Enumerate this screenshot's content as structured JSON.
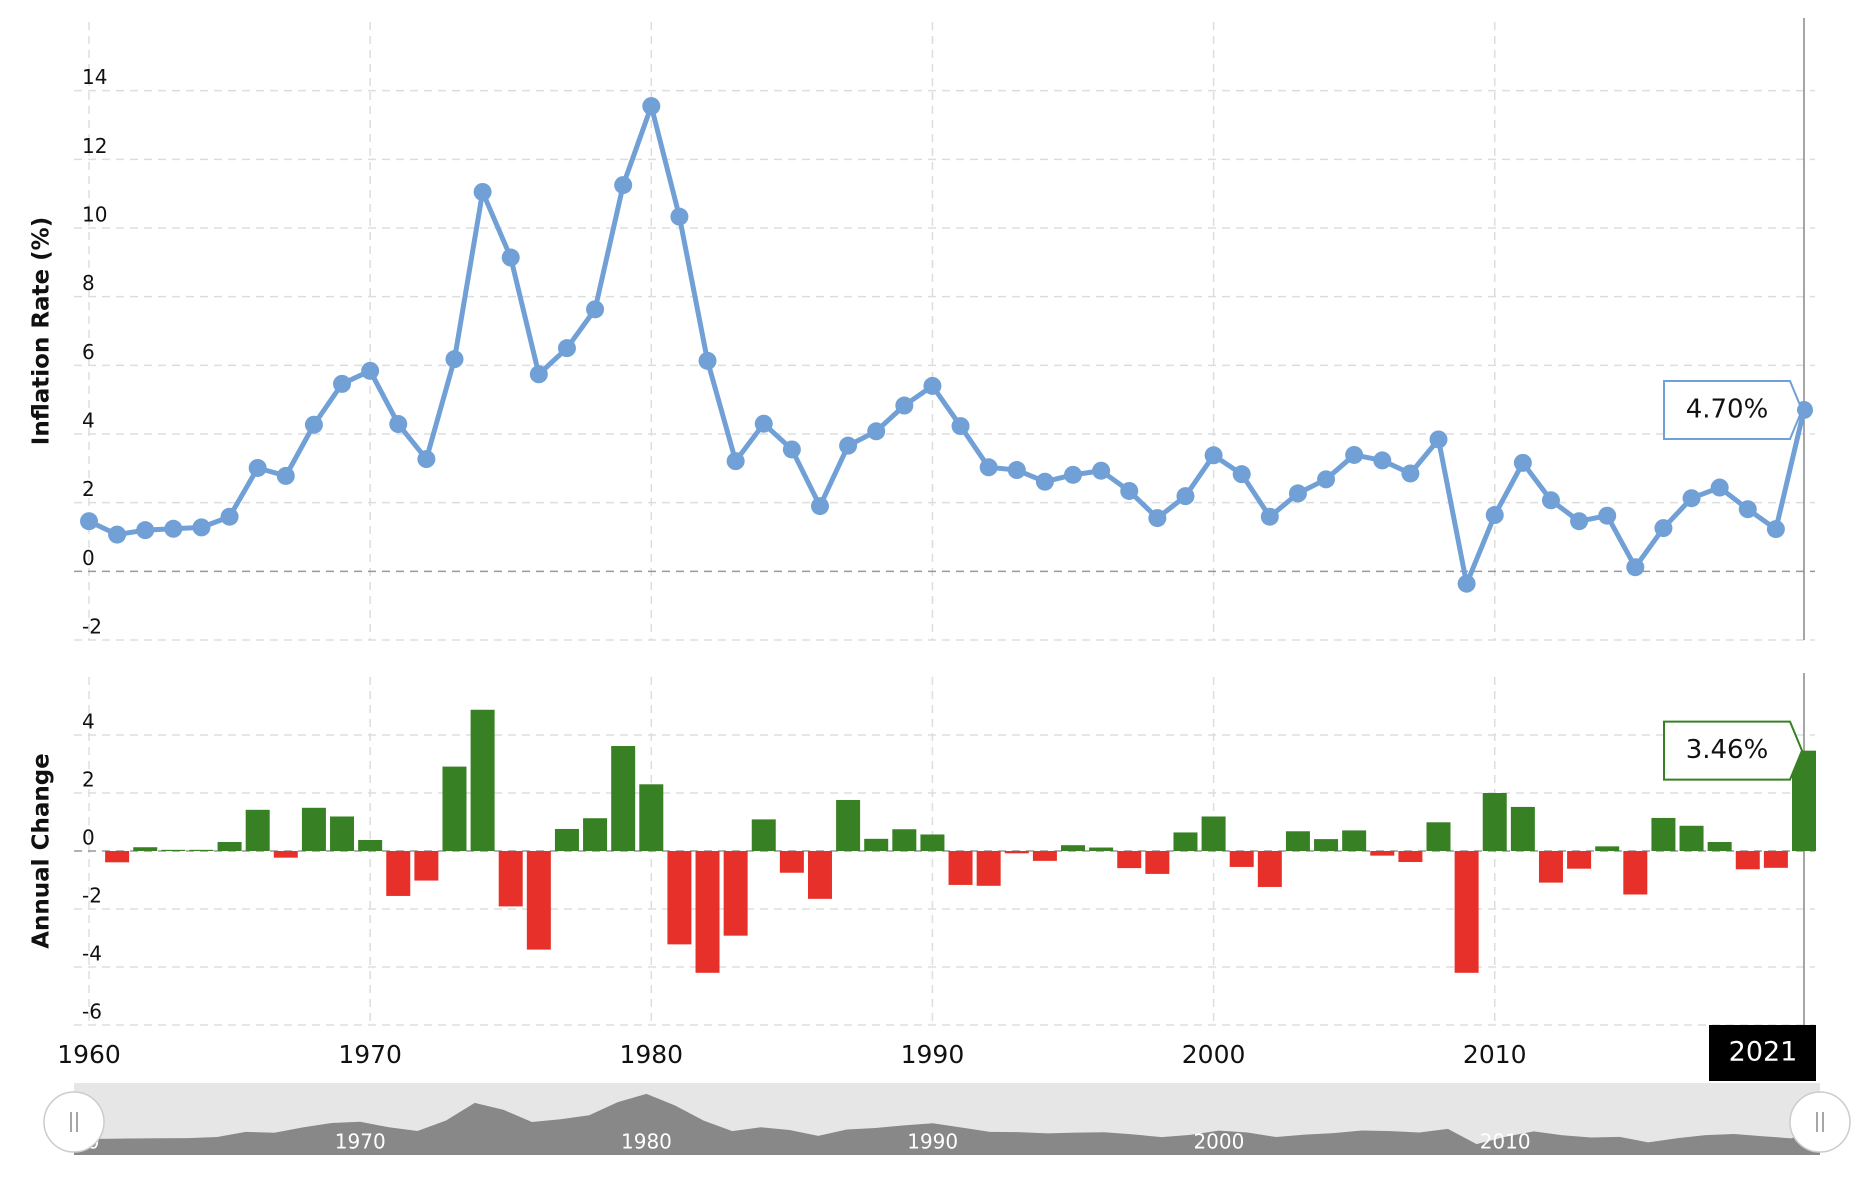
{
  "chart_data": [
    {
      "type": "line",
      "ylabel": "Inflation Rate (%)",
      "x": [
        1960,
        1961,
        1962,
        1963,
        1964,
        1965,
        1966,
        1967,
        1968,
        1969,
        1970,
        1971,
        1972,
        1973,
        1974,
        1975,
        1976,
        1977,
        1978,
        1979,
        1980,
        1981,
        1982,
        1983,
        1984,
        1985,
        1986,
        1987,
        1988,
        1989,
        1990,
        1991,
        1992,
        1993,
        1994,
        1995,
        1996,
        1997,
        1998,
        1999,
        2000,
        2001,
        2002,
        2003,
        2004,
        2005,
        2006,
        2007,
        2008,
        2009,
        2010,
        2011,
        2012,
        2013,
        2014,
        2015,
        2016,
        2017,
        2018,
        2019,
        2020,
        2021
      ],
      "values": [
        1.46,
        1.07,
        1.2,
        1.24,
        1.28,
        1.59,
        3.01,
        2.78,
        4.27,
        5.46,
        5.84,
        4.29,
        3.27,
        6.18,
        11.05,
        9.14,
        5.74,
        6.5,
        7.63,
        11.25,
        13.55,
        10.33,
        6.13,
        3.21,
        4.3,
        3.55,
        1.9,
        3.66,
        4.08,
        4.83,
        5.4,
        4.23,
        3.03,
        2.95,
        2.61,
        2.81,
        2.93,
        2.34,
        1.55,
        2.19,
        3.38,
        2.83,
        1.59,
        2.27,
        2.68,
        3.39,
        3.23,
        2.85,
        3.84,
        -0.36,
        1.64,
        3.16,
        2.07,
        1.46,
        1.62,
        0.12,
        1.26,
        2.13,
        2.44,
        1.81,
        1.23,
        4.7
      ],
      "value_labels": [
        null,
        null,
        null,
        null,
        null,
        null,
        null,
        null,
        null,
        null,
        null,
        null,
        null,
        null,
        null,
        null,
        null,
        null,
        null,
        null,
        null,
        null,
        null,
        null,
        null,
        null,
        null,
        null,
        null,
        null,
        null,
        null,
        null,
        null,
        null,
        null,
        null,
        null,
        null,
        null,
        null,
        null,
        null,
        null,
        null,
        null,
        null,
        null,
        null,
        null,
        null,
        null,
        null,
        null,
        null,
        null,
        null,
        null,
        null,
        null,
        null,
        "4.70%"
      ],
      "color": "#70a0d6",
      "xlim": [
        1960,
        2021
      ],
      "xticks": [
        1960,
        1970,
        1980,
        1990,
        2000,
        2010
      ],
      "ylim": [
        -2,
        16
      ],
      "yticks": [
        -2,
        0,
        2,
        4,
        6,
        8,
        10,
        12,
        14
      ],
      "grid": true,
      "crosshair_x": 2021
    },
    {
      "type": "bar",
      "ylabel": "Annual Change",
      "x": [
        1960,
        1961,
        1962,
        1963,
        1964,
        1965,
        1966,
        1967,
        1968,
        1969,
        1970,
        1971,
        1972,
        1973,
        1974,
        1975,
        1976,
        1977,
        1978,
        1979,
        1980,
        1981,
        1982,
        1983,
        1984,
        1985,
        1986,
        1987,
        1988,
        1989,
        1990,
        1991,
        1992,
        1993,
        1994,
        1995,
        1996,
        1997,
        1998,
        1999,
        2000,
        2001,
        2002,
        2003,
        2004,
        2005,
        2006,
        2007,
        2008,
        2009,
        2010,
        2011,
        2012,
        2013,
        2014,
        2015,
        2016,
        2017,
        2018,
        2019,
        2020,
        2021
      ],
      "values": [
        null,
        -0.39,
        0.13,
        0.04,
        0.04,
        0.31,
        1.42,
        -0.23,
        1.49,
        1.19,
        0.38,
        -1.55,
        -1.02,
        2.91,
        4.87,
        -1.91,
        -3.4,
        0.76,
        1.13,
        3.62,
        2.3,
        -3.22,
        -4.2,
        -2.92,
        1.09,
        -0.75,
        -1.65,
        1.76,
        0.42,
        0.75,
        0.57,
        -1.17,
        -1.2,
        -0.08,
        -0.34,
        0.2,
        0.12,
        -0.59,
        -0.79,
        0.64,
        1.19,
        -0.55,
        -1.24,
        0.68,
        0.41,
        0.71,
        -0.16,
        -0.38,
        0.99,
        -4.2,
        2.0,
        1.52,
        -1.09,
        -0.61,
        0.16,
        -1.5,
        1.14,
        0.87,
        0.31,
        -0.63,
        -0.58,
        3.46
      ],
      "value_labels": [
        null,
        null,
        null,
        null,
        null,
        null,
        null,
        null,
        null,
        null,
        null,
        null,
        null,
        null,
        null,
        null,
        null,
        null,
        null,
        null,
        null,
        null,
        null,
        null,
        null,
        null,
        null,
        null,
        null,
        null,
        null,
        null,
        null,
        null,
        null,
        null,
        null,
        null,
        null,
        null,
        null,
        null,
        null,
        null,
        null,
        null,
        null,
        null,
        null,
        null,
        null,
        null,
        null,
        null,
        null,
        null,
        null,
        null,
        null,
        null,
        null,
        "3.46%"
      ],
      "positive_color": "#378024",
      "negative_color": "#e8302a",
      "xlim": [
        1960,
        2021
      ],
      "xticks": [
        1960,
        1970,
        1980,
        1990,
        2000,
        2010
      ],
      "ylim": [
        -6,
        6
      ],
      "yticks": [
        -6,
        -4,
        -2,
        0,
        2,
        4
      ],
      "grid": true,
      "crosshair_x": 2021
    }
  ]
}
